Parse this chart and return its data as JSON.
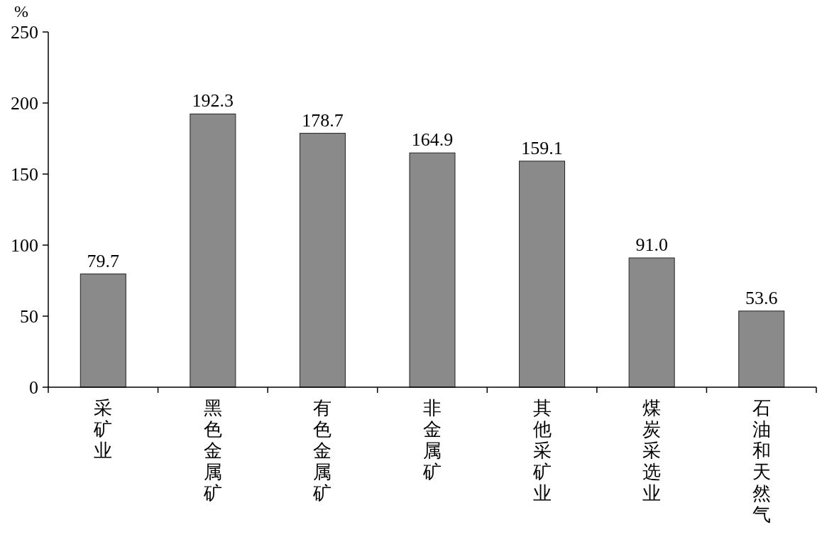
{
  "chart_data": {
    "type": "bar",
    "ylabel": "%",
    "categories": [
      "采矿业",
      "黑色金属矿",
      "有色金属矿",
      "非金属矿",
      "其他采矿业",
      "煤炭采选业",
      "石油和天然气"
    ],
    "values": [
      79.7,
      192.3,
      178.7,
      164.9,
      159.1,
      91.0,
      53.6
    ],
    "value_labels": [
      "79.7",
      "192.3",
      "178.7",
      "164.9",
      "159.1",
      "91.0",
      "53.6"
    ],
    "color": "#8a8a8a",
    "ylim": [
      0,
      250
    ],
    "yticks": [
      0,
      50,
      100,
      150,
      200,
      250
    ],
    "grid": false
  }
}
